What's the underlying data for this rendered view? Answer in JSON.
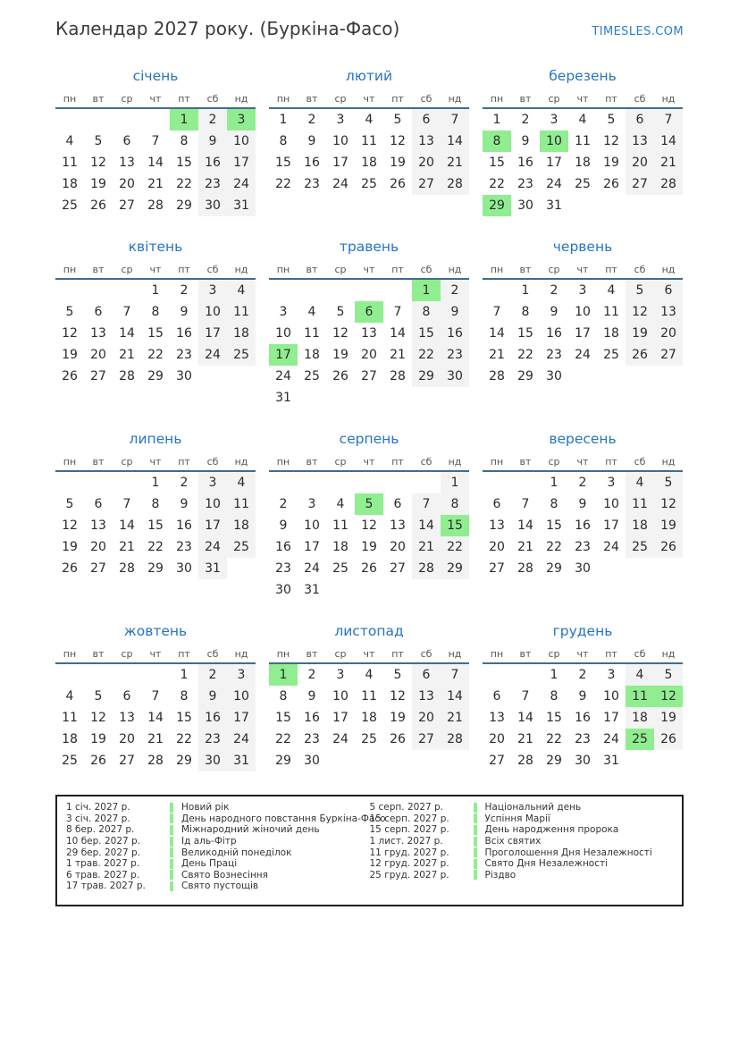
{
  "page": {
    "title": "Календар 2027 року. (Буркіна-Фасо)",
    "site": "TIMESLES.COM"
  },
  "colors": {
    "month_title_blue": "#2574c4",
    "site_link_blue": "#2b7bd3",
    "holiday_green": "#90ee90",
    "weekend_gray": "#f3f3f3",
    "header_underline": "#3e6d90"
  },
  "weekdays": [
    "пн",
    "вт",
    "ср",
    "чт",
    "пт",
    "сб",
    "нд"
  ],
  "months": [
    {
      "name": "січень",
      "first_day": 4,
      "days": 31,
      "holidays": [
        1,
        3
      ]
    },
    {
      "name": "лютий",
      "first_day": 0,
      "days": 28,
      "holidays": []
    },
    {
      "name": "березень",
      "first_day": 0,
      "days": 31,
      "holidays": [
        8,
        10,
        29
      ]
    },
    {
      "name": "квітень",
      "first_day": 3,
      "days": 30,
      "holidays": []
    },
    {
      "name": "травень",
      "first_day": 5,
      "days": 31,
      "holidays": [
        1,
        6,
        17
      ]
    },
    {
      "name": "червень",
      "first_day": 1,
      "days": 30,
      "holidays": []
    },
    {
      "name": "липень",
      "first_day": 3,
      "days": 31,
      "holidays": []
    },
    {
      "name": "серпень",
      "first_day": 6,
      "days": 31,
      "holidays": [
        5,
        15
      ]
    },
    {
      "name": "вересень",
      "first_day": 2,
      "days": 30,
      "holidays": []
    },
    {
      "name": "жовтень",
      "first_day": 4,
      "days": 31,
      "holidays": []
    },
    {
      "name": "листопад",
      "first_day": 0,
      "days": 30,
      "holidays": [
        1
      ]
    },
    {
      "name": "грудень",
      "first_day": 2,
      "days": 31,
      "holidays": [
        11,
        12,
        25
      ]
    }
  ],
  "legend": {
    "left": [
      {
        "date": "1 січ. 2027 р.",
        "name": "Новий рік"
      },
      {
        "date": "3 січ. 2027 р.",
        "name": "День народного повстання Буркіна-Фасо"
      },
      {
        "date": "8 бер. 2027 р.",
        "name": "Міжнародний жіночий день"
      },
      {
        "date": "10 бер. 2027 р.",
        "name": "Ід аль-Фітр"
      },
      {
        "date": "29 бер. 2027 р.",
        "name": "Великодній понеділок"
      },
      {
        "date": "1 трав. 2027 р.",
        "name": "День Праці"
      },
      {
        "date": "6 трав. 2027 р.",
        "name": "Свято Вознесіння"
      },
      {
        "date": "17 трав. 2027 р.",
        "name": "Свято пустощів"
      }
    ],
    "right": [
      {
        "date": "5 серп. 2027 р.",
        "name": "Національний день"
      },
      {
        "date": "15 серп. 2027 р.",
        "name": "Успіння Марії"
      },
      {
        "date": "15 серп. 2027 р.",
        "name": "День народження пророка"
      },
      {
        "date": "1 лист. 2027 р.",
        "name": "Всіх святих"
      },
      {
        "date": "11 груд. 2027 р.",
        "name": "Проголошення Дня Незалежності"
      },
      {
        "date": "12 груд. 2027 р.",
        "name": "Свято Дня Незалежності"
      },
      {
        "date": "25 груд. 2027 р.",
        "name": "Різдво"
      }
    ]
  }
}
